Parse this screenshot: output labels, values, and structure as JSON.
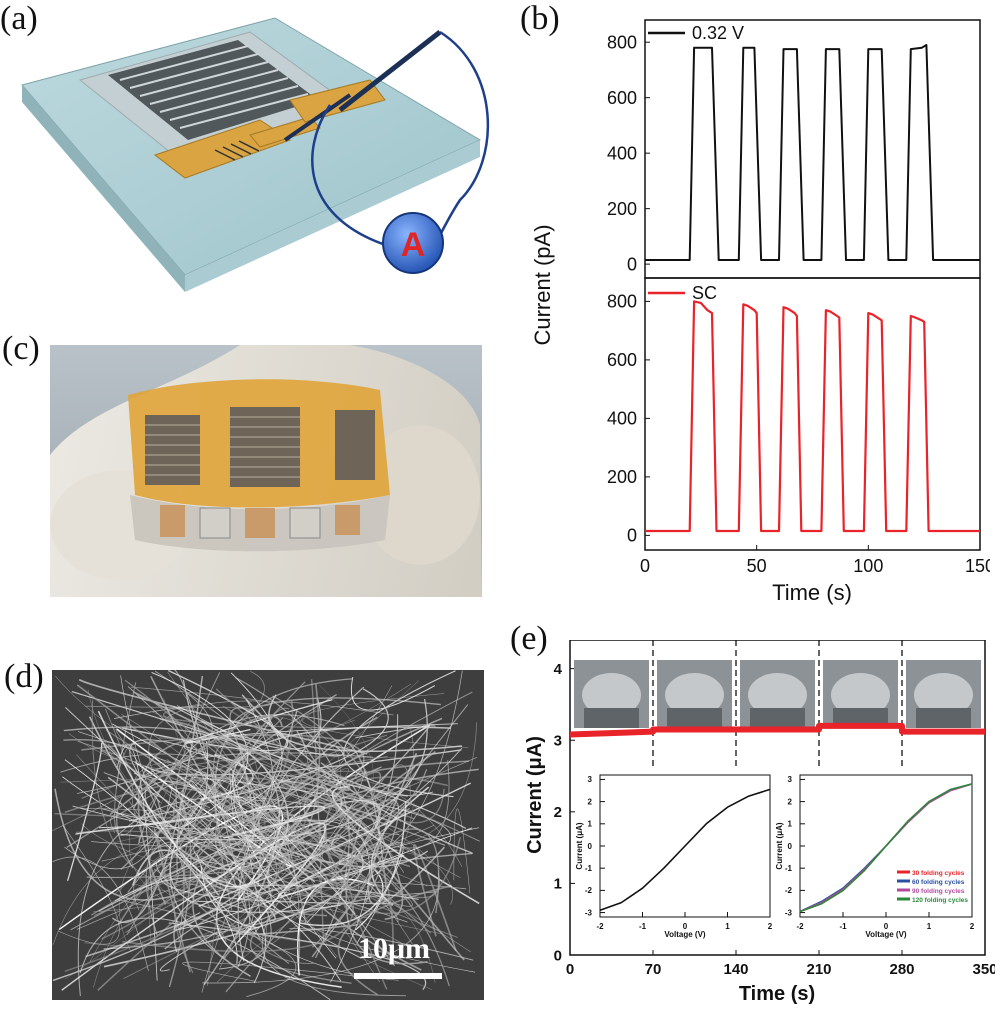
{
  "panels": {
    "a": {
      "label": "(a)",
      "meter_symbol": "A"
    },
    "b": {
      "label": "(b)"
    },
    "c": {
      "label": "(c)"
    },
    "d": {
      "label": "(d)",
      "scale_bar": "10μm"
    },
    "e": {
      "label": "(e)"
    }
  },
  "chart_data": [
    {
      "panel": "b",
      "type": "line",
      "subplot": "top",
      "ylabel": "Current (pA)",
      "xlabel": "",
      "legend": [
        "0.32 V"
      ],
      "legend_placement": "top-left",
      "xlim": [
        0,
        150
      ],
      "ylim": [
        -50,
        880
      ],
      "yticks": [
        "0",
        "200",
        "400",
        "600",
        "800"
      ],
      "series": [
        {
          "name": "0.32 V",
          "color": "#111111",
          "x": [
            0,
            20,
            22,
            28,
            30,
            33,
            35,
            42,
            44,
            48,
            49,
            52,
            54,
            60,
            62,
            67,
            68,
            71,
            73,
            79,
            81,
            86,
            87,
            90,
            92,
            98,
            100,
            105,
            106,
            109,
            111,
            117,
            119,
            124,
            126,
            129,
            131,
            150
          ],
          "y": [
            15,
            15,
            780,
            780,
            780,
            15,
            15,
            15,
            780,
            780,
            780,
            15,
            15,
            15,
            775,
            775,
            775,
            15,
            15,
            15,
            775,
            775,
            775,
            15,
            15,
            15,
            775,
            775,
            775,
            15,
            15,
            15,
            775,
            780,
            790,
            15,
            15,
            15
          ]
        }
      ]
    },
    {
      "panel": "b",
      "type": "line",
      "subplot": "bottom",
      "xlabel": "Time (s)",
      "ylabel": "",
      "legend": [
        "SC"
      ],
      "legend_placement": "top-left",
      "xlim": [
        0,
        150
      ],
      "ylim": [
        -50,
        880
      ],
      "xticks": [
        "0",
        "50",
        "100",
        "150"
      ],
      "yticks": [
        "0",
        "200",
        "400",
        "600",
        "800"
      ],
      "series": [
        {
          "name": "SC",
          "color": "#e8232a",
          "x": [
            0,
            20,
            22,
            25,
            28,
            30,
            32,
            34,
            42,
            44,
            46,
            49,
            50,
            52,
            54,
            60,
            62,
            64,
            67,
            68,
            70,
            72,
            79,
            81,
            83,
            86,
            87,
            89,
            91,
            98,
            100,
            102,
            105,
            106,
            108,
            110,
            117,
            119,
            121,
            124,
            125,
            127,
            129,
            150
          ],
          "y": [
            15,
            15,
            800,
            795,
            770,
            760,
            15,
            15,
            15,
            790,
            785,
            770,
            760,
            15,
            15,
            15,
            780,
            775,
            760,
            750,
            15,
            15,
            15,
            770,
            765,
            750,
            745,
            15,
            15,
            15,
            760,
            755,
            740,
            735,
            15,
            15,
            15,
            750,
            745,
            735,
            730,
            15,
            15,
            15
          ]
        }
      ]
    },
    {
      "panel": "e",
      "type": "line",
      "subplot": "main",
      "xlabel": "Time (s)",
      "ylabel": "Current (μA)",
      "xlim": [
        0,
        350
      ],
      "ylim": [
        0,
        4.4
      ],
      "xticks": [
        "0",
        "70",
        "140",
        "210",
        "280",
        "350"
      ],
      "yticks": [
        "0",
        "1",
        "2",
        "3",
        "4"
      ],
      "dashed_dividers_x": [
        70,
        140,
        210,
        280
      ],
      "series": [
        {
          "name": "",
          "color": "#e8232a",
          "x": [
            0,
            70,
            70,
            140,
            140,
            210,
            210,
            280,
            280,
            350
          ],
          "y": [
            3.08,
            3.12,
            3.15,
            3.15,
            3.15,
            3.15,
            3.2,
            3.2,
            3.12,
            3.12
          ]
        }
      ]
    },
    {
      "panel": "e",
      "type": "line",
      "subplot": "inset-left",
      "xlabel": "Voltage (V)",
      "ylabel": "Current (μA)",
      "xlim": [
        -2,
        2
      ],
      "ylim": [
        -3.2,
        3.2
      ],
      "xticks": [
        "-2",
        "-1",
        "0",
        "1",
        "2"
      ],
      "yticks": [
        "-3",
        "-2",
        "-1",
        "0",
        "1",
        "2",
        "3"
      ],
      "series": [
        {
          "name": "",
          "color": "#111111",
          "x": [
            -2,
            -1.5,
            -1,
            -0.5,
            0,
            0.5,
            1,
            1.5,
            2
          ],
          "y": [
            -2.9,
            -2.55,
            -1.9,
            -1.0,
            0,
            1.0,
            1.75,
            2.25,
            2.55
          ]
        }
      ]
    },
    {
      "panel": "e",
      "type": "line",
      "subplot": "inset-right",
      "xlabel": "Voltage (V)",
      "ylabel": "Current (μA)",
      "xlim": [
        -2,
        2
      ],
      "ylim": [
        -3.2,
        3.2
      ],
      "xticks": [
        "-2",
        "-1",
        "0",
        "1",
        "2"
      ],
      "yticks": [
        "-3",
        "-2",
        "-1",
        "0",
        "1",
        "2",
        "3"
      ],
      "legend_placement": "bottom-right",
      "series": [
        {
          "name": "30 folding cycles",
          "color": "#e8232a",
          "x": [
            -2,
            -1.5,
            -1,
            -0.5,
            0,
            0.5,
            1,
            1.5,
            2
          ],
          "y": [
            -2.95,
            -2.6,
            -2.0,
            -1.1,
            0,
            1.1,
            2.0,
            2.5,
            2.8
          ]
        },
        {
          "name": "60 folding cycles",
          "color": "#2a4fa0",
          "x": [
            -2,
            -1.5,
            -1,
            -0.5,
            0,
            0.5,
            1,
            1.5,
            2
          ],
          "y": [
            -2.95,
            -2.5,
            -1.9,
            -1.0,
            0,
            1.05,
            1.95,
            2.5,
            2.8
          ]
        },
        {
          "name": "90 folding cycles",
          "color": "#b04aa0",
          "x": [
            -2,
            -1.5,
            -1,
            -0.5,
            0,
            0.5,
            1,
            1.5,
            2
          ],
          "y": [
            -2.95,
            -2.55,
            -1.95,
            -1.05,
            0,
            1.05,
            1.95,
            2.5,
            2.8
          ]
        },
        {
          "name": "120 folding cycles",
          "color": "#2a8a3a",
          "x": [
            -2,
            -1.5,
            -1,
            -0.5,
            0,
            0.5,
            1,
            1.5,
            2
          ],
          "y": [
            -2.95,
            -2.6,
            -2.0,
            -1.1,
            0,
            1.1,
            2.0,
            2.55,
            2.8
          ]
        }
      ]
    }
  ]
}
